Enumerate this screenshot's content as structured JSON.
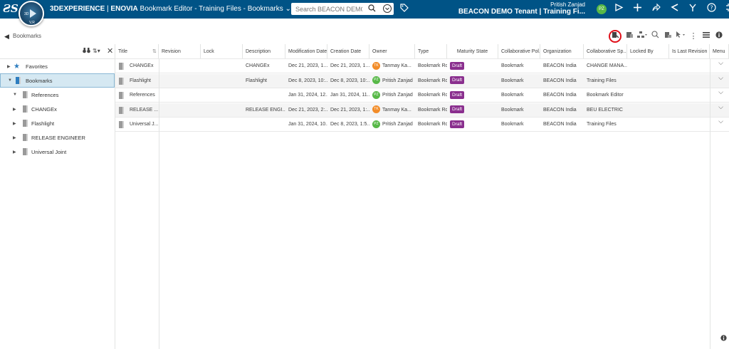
{
  "topbar": {
    "brand": "3DEXPERIENCE",
    "app": "ENOVIA",
    "title": "Bookmark Editor - Training Files - Bookmarks",
    "title_chevron": "⌄",
    "compass_labels": [
      "3D",
      "V,R"
    ],
    "search_placeholder": "Search BEACON DEMO Tenant",
    "user_name": "Pritish Zanjad",
    "tenant": "BEACON DEMO Tenant | Training Fi...",
    "user_initials": "PZ",
    "icons": [
      "play-icon",
      "plus-icon",
      "share-icon",
      "broadcast-icon",
      "compass-tools-icon",
      "help-icon",
      "fullscreen-icon"
    ]
  },
  "subbar": {
    "breadcrumb": "Bookmarks",
    "tools": [
      "insert-bookmark-icon",
      "create-folder-icon",
      "hierarchy-icon",
      "search-icon",
      "attach-icon",
      "cursor-icon",
      "more-icon",
      "list-view-icon",
      "info-icon"
    ]
  },
  "tree": {
    "nodes": [
      {
        "label": "Favorites",
        "toggle": "▶",
        "type": "star"
      },
      {
        "label": "Bookmarks",
        "toggle": "▼",
        "type": "bookmark",
        "selected": true
      },
      {
        "label": "References",
        "toggle": "▼",
        "type": "bookmark"
      },
      {
        "label": "CHANGEx",
        "toggle": "▶",
        "type": "bookmark"
      },
      {
        "label": "Flashlight",
        "toggle": "▶",
        "type": "bookmark"
      },
      {
        "label": "RELEASE ENGINEER",
        "toggle": "▶",
        "type": "bookmark"
      },
      {
        "label": "Universal Joint",
        "toggle": "▶",
        "type": "bookmark"
      }
    ]
  },
  "grid": {
    "columns": [
      "Title",
      "Revision",
      "Lock",
      "Description",
      "Modification Date",
      "Creation Date",
      "Owner",
      "Type",
      "Maturity State",
      "Collaborative Pol...",
      "Organization",
      "Collaborative Sp...",
      "Locked By",
      "Is Last Revision",
      "Menu"
    ],
    "rows": [
      {
        "title": "CHANGEx",
        "description": "CHANGEx",
        "mod": "Dec 21, 2023, 1...",
        "created": "Dec 21, 2023, 1...",
        "owner": "Tanmay Ka...",
        "initials": "TK",
        "owner_color": "#f28c28",
        "type": "Bookmark Root",
        "state": "Draft",
        "policy": "Bookmark",
        "org": "BEACON India",
        "space": "CHANGE MANA..."
      },
      {
        "title": "Flashlight",
        "description": "Flashlight",
        "mod": "Dec 8, 2023, 10:...",
        "created": "Dec 8, 2023, 10:...",
        "owner": "Pritish Zanjad",
        "initials": "PZ",
        "owner_color": "#57b847",
        "type": "Bookmark Root",
        "state": "Draft",
        "policy": "Bookmark",
        "org": "BEACON India",
        "space": "Training Files"
      },
      {
        "title": "References",
        "description": "",
        "mod": "Jan 31, 2024, 12...",
        "created": "Jan 31, 2024, 11...",
        "owner": "Pritish Zanjad",
        "initials": "PZ",
        "owner_color": "#57b847",
        "type": "Bookmark Root",
        "state": "Draft",
        "policy": "Bookmark",
        "org": "BEACON India",
        "space": "Bookmark Editor"
      },
      {
        "title": "RELEASE ...",
        "description": "RELEASE ENGI...",
        "mod": "Dec 21, 2023, 2:...",
        "created": "Dec 21, 2023, 1:...",
        "owner": "Tanmay Ka...",
        "initials": "TK",
        "owner_color": "#f28c28",
        "type": "Bookmark Root",
        "state": "Draft",
        "policy": "Bookmark",
        "org": "BEACON India",
        "space": "BEU ELECTRIC"
      },
      {
        "title": "Universal J...",
        "description": "",
        "mod": "Jan 31, 2024, 10...",
        "created": "Dec 8, 2023, 1:5...",
        "owner": "Pritish Zanjad",
        "initials": "PZ",
        "owner_color": "#57b847",
        "type": "Bookmark Root",
        "state": "Draft",
        "policy": "Bookmark",
        "org": "BEACON India",
        "space": "Training Files"
      }
    ]
  },
  "colors": {
    "topbar": "#005386",
    "draft": "#8a2f8e",
    "selection": "#d5e8f2",
    "highlight_circle": "#e0101a"
  }
}
